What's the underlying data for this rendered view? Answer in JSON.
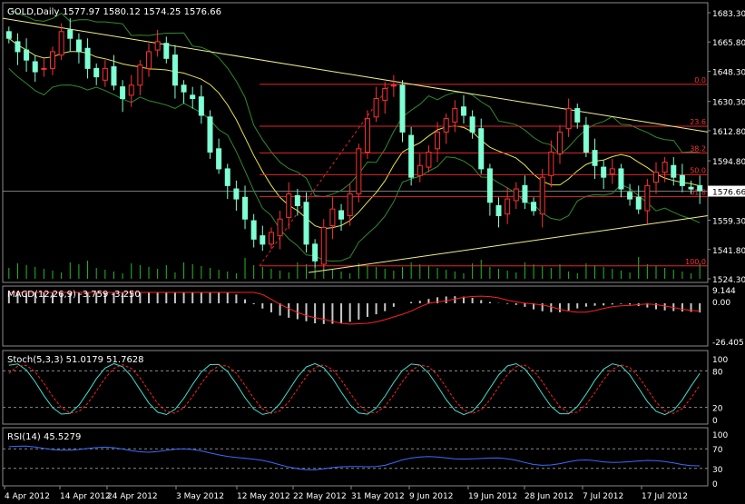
{
  "window": {
    "symbol_title": "GOLD,Daily",
    "ohlc_text": "1577.97 1580.12 1574.25 1576.66"
  },
  "colors": {
    "background": "#000000",
    "frame": "#8a8a8a",
    "text": "#ffffff",
    "bull_candle": "#ff3030",
    "bear_candle": "#7fffd4",
    "bb_band": "#2e8b2e",
    "ma_line": "#e6e64a",
    "trendline": "#f0f08a",
    "fib_line": "#e32626",
    "fib_text": "#ff3030",
    "volume": "#1fbf1f",
    "macd_hist": "#c8c8c8",
    "macd_signal": "#ff2020",
    "stoch_main": "#40e0d0",
    "stoch_signal": "#ff2020",
    "rsi_line": "#3a6bff",
    "price_marker": "#a0a0a0"
  },
  "price_panel": {
    "price_ticks": [
      "1683.30",
      "1665.80",
      "1648.30",
      "1630.30",
      "1612.80",
      "1594.80",
      "1576.66",
      "1559.30",
      "1541.80",
      "1524.30"
    ],
    "current_price": "1576.66",
    "fib_levels": [
      {
        "label": "0.0",
        "price": 1640.5
      },
      {
        "label": "23.6",
        "price": 1615.5
      },
      {
        "label": "38.2",
        "price": 1599.5
      },
      {
        "label": "50.0",
        "price": 1586.5
      },
      {
        "label": "61.8",
        "price": 1573.5
      },
      {
        "label": "100.0",
        "price": 1532.0
      }
    ]
  },
  "macd_panel": {
    "title": "MACD(12,26,9) -3.759 -3.250",
    "ticks": [
      "9.144",
      "0.00",
      "-26.405"
    ]
  },
  "stoch_panel": {
    "title": "Stoch(5,3,3) 51.0179 51.7628",
    "ticks": [
      "100",
      "80",
      "20",
      "0"
    ]
  },
  "rsi_panel": {
    "title": "RSI(14) 45.5279",
    "ticks": [
      "100",
      "70",
      "30",
      "0"
    ]
  },
  "date_labels": [
    "4 Apr 2012",
    "14 Apr 2012",
    "24 Apr 2012",
    "3 May 2012",
    "12 May 2012",
    "22 May 2012",
    "31 May 2012",
    "9 Jun 2012",
    "19 Jun 2012",
    "28 Jun 2012",
    "7 Jul 2012",
    "17 Jul 2012"
  ]
}
